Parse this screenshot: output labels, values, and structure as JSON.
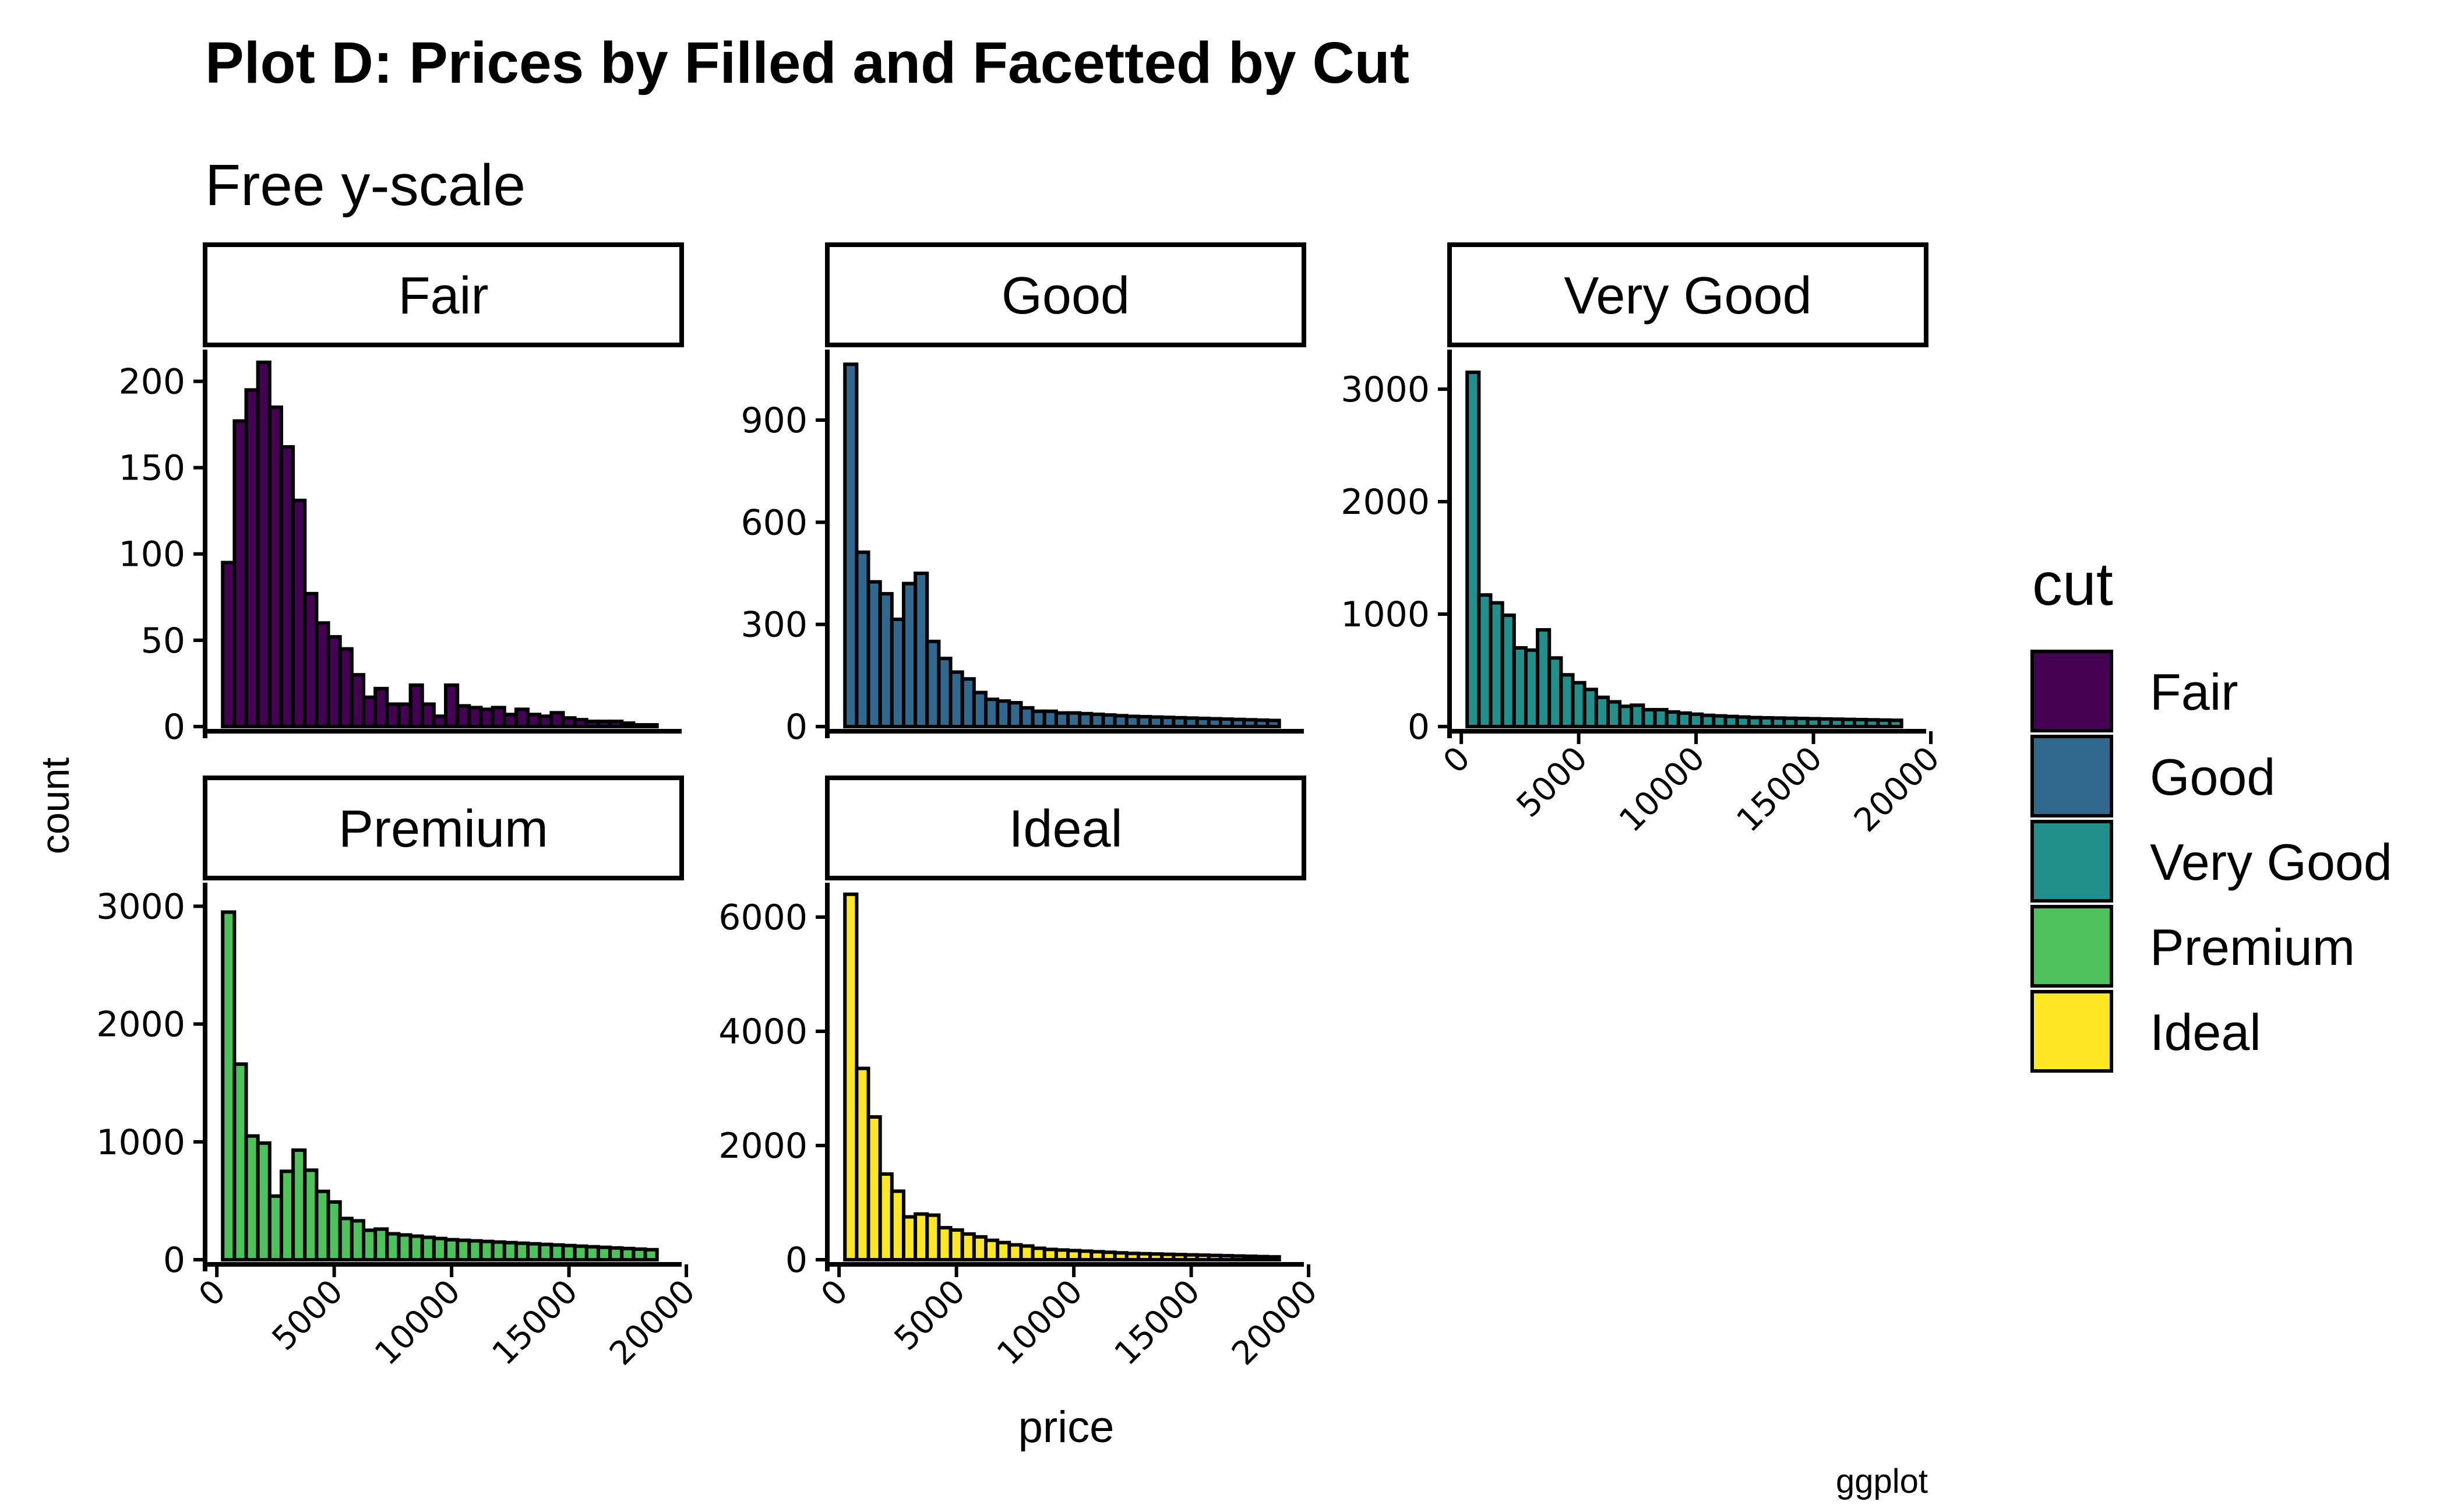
{
  "chart_data": {
    "type": "bar",
    "title": "Plot D: Prices by Filled and Facetted by Cut",
    "subtitle": "Free y-scale",
    "xlabel": "price",
    "ylabel": "count",
    "caption": "ggplot",
    "legend": {
      "title": "cut",
      "position": "right",
      "entries": [
        "Fair",
        "Good",
        "Very Good",
        "Premium",
        "Ideal"
      ]
    },
    "bin_width": 500,
    "bin_centers": [
      500,
      1000,
      1500,
      2000,
      2500,
      3000,
      3500,
      4000,
      4500,
      5000,
      5500,
      6000,
      6500,
      7000,
      7500,
      8000,
      8500,
      9000,
      9500,
      10000,
      10500,
      11000,
      11500,
      12000,
      12500,
      13000,
      13500,
      14000,
      14500,
      15000,
      15500,
      16000,
      16500,
      17000,
      17500,
      18000,
      18500
    ],
    "x_ticks": [
      0,
      5000,
      10000,
      15000,
      20000
    ],
    "xlim": [
      -500,
      19800
    ],
    "grid": false,
    "facets": [
      {
        "name": "Fair",
        "color": "#440154",
        "ylim": [
          0,
          215
        ],
        "y_ticks": [
          0,
          50,
          100,
          150,
          200
        ],
        "values": [
          95,
          177,
          195,
          211,
          185,
          162,
          131,
          77,
          60,
          52,
          45,
          30,
          17,
          22,
          13,
          13,
          24,
          13,
          6,
          24,
          12,
          11,
          10,
          11,
          7,
          10,
          7,
          6,
          8,
          5,
          4,
          3,
          3,
          3,
          2,
          1,
          1
        ]
      },
      {
        "name": "Good",
        "color": "#31688E",
        "ylim": [
          0,
          1090
        ],
        "y_ticks": [
          0,
          300,
          600,
          900
        ],
        "values": [
          1064,
          512,
          425,
          390,
          315,
          420,
          450,
          250,
          200,
          160,
          140,
          100,
          80,
          75,
          70,
          55,
          45,
          45,
          40,
          40,
          38,
          36,
          34,
          32,
          30,
          29,
          28,
          27,
          26,
          25,
          24,
          23,
          22,
          21,
          20,
          19,
          18
        ]
      },
      {
        "name": "Very Good",
        "color": "#21908C",
        "ylim": [
          0,
          3300
        ],
        "y_ticks": [
          0,
          1000,
          2000,
          3000
        ],
        "values": [
          3150,
          1170,
          1100,
          990,
          700,
          680,
          860,
          610,
          460,
          390,
          330,
          260,
          220,
          180,
          190,
          150,
          150,
          130,
          120,
          110,
          100,
          95,
          90,
          85,
          80,
          78,
          76,
          74,
          72,
          70,
          68,
          66,
          64,
          62,
          60,
          58,
          56
        ]
      },
      {
        "name": "Premium",
        "color": "#4DC15A",
        "ylim": [
          0,
          3150
        ],
        "y_ticks": [
          0,
          1000,
          2000,
          3000
        ],
        "values": [
          2950,
          1660,
          1050,
          990,
          540,
          750,
          930,
          760,
          580,
          490,
          350,
          330,
          250,
          260,
          220,
          210,
          200,
          190,
          180,
          170,
          165,
          160,
          155,
          150,
          145,
          140,
          135,
          130,
          125,
          120,
          115,
          110,
          105,
          100,
          95,
          90,
          85
        ]
      },
      {
        "name": "Ideal",
        "color": "#FDE725",
        "ylim": [
          0,
          6500
        ],
        "y_ticks": [
          0,
          2000,
          4000,
          6000
        ],
        "values": [
          6400,
          3350,
          2500,
          1500,
          1200,
          750,
          800,
          780,
          560,
          520,
          450,
          400,
          340,
          300,
          260,
          240,
          200,
          180,
          170,
          160,
          150,
          140,
          130,
          120,
          110,
          105,
          100,
          95,
          90,
          85,
          80,
          75,
          70,
          65,
          60,
          55,
          50
        ]
      }
    ]
  }
}
